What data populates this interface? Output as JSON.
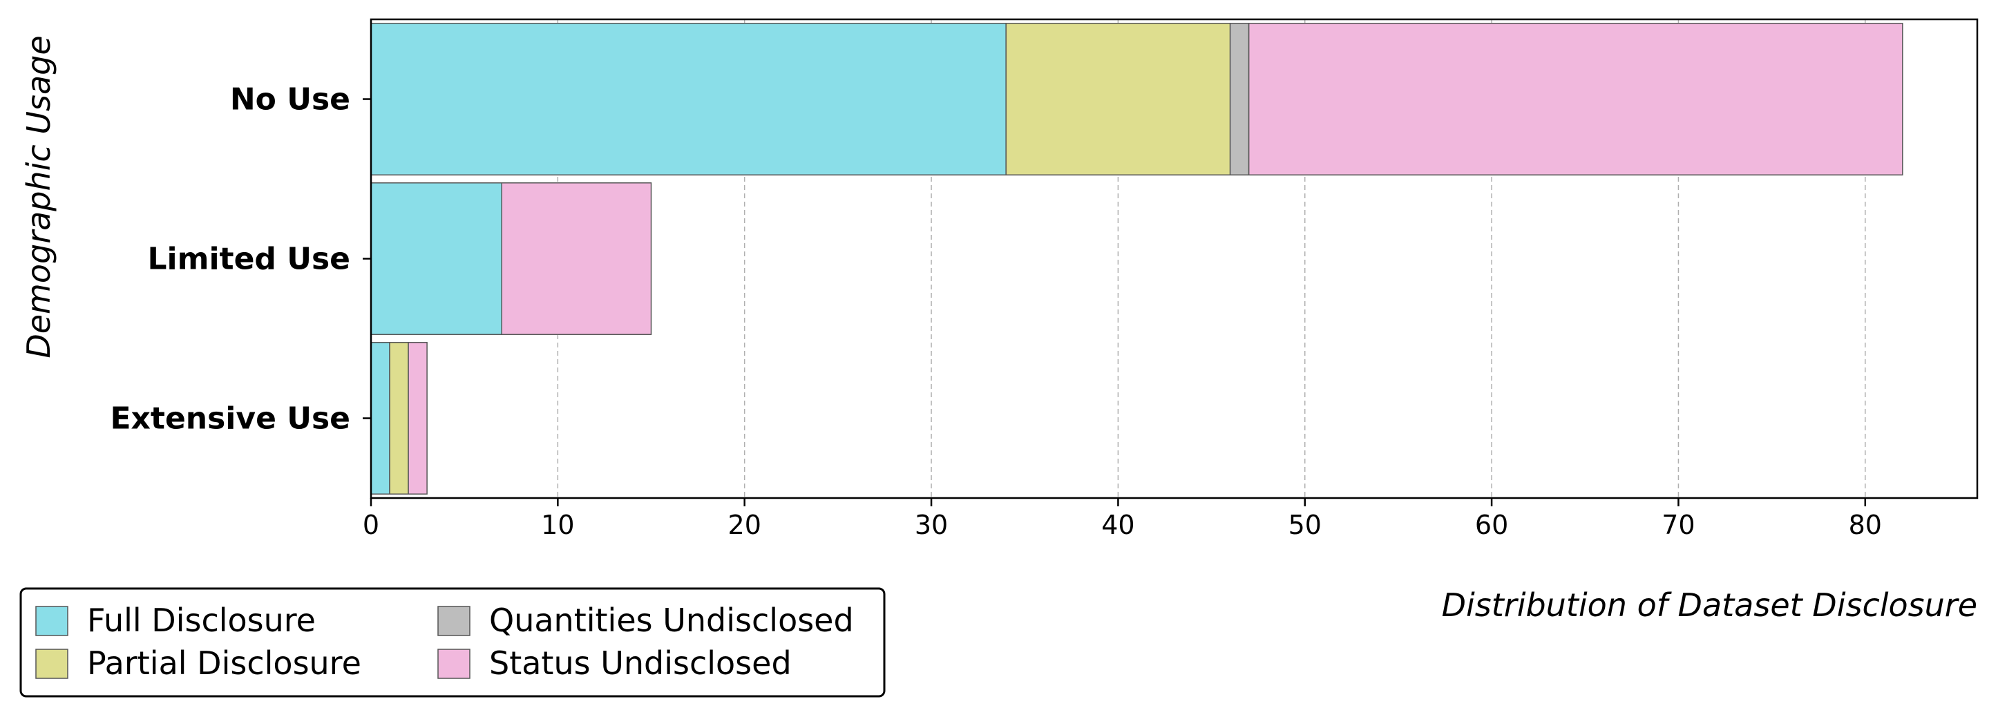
{
  "chart_data": {
    "type": "bar",
    "orientation": "horizontal",
    "stacked": true,
    "title": "",
    "xlabel": "Distribution of Dataset Disclosure",
    "ylabel": "Demographic Usage",
    "categories": [
      "No Use",
      "Limited Use",
      "Extensive Use"
    ],
    "series": [
      {
        "name": "Full Disclosure",
        "color": "#8ADEE8",
        "values": [
          34,
          7,
          1
        ]
      },
      {
        "name": "Partial Disclosure",
        "color": "#DEDE8F",
        "values": [
          12,
          0,
          1
        ]
      },
      {
        "name": "Quantities Undisclosed",
        "color": "#BDBDBD",
        "values": [
          1,
          0,
          0
        ]
      },
      {
        "name": "Status Undisclosed",
        "color": "#F1B8DD",
        "values": [
          35,
          8,
          1
        ]
      }
    ],
    "xlim": [
      0,
      86
    ],
    "xticks": [
      0,
      10,
      20,
      30,
      40,
      50,
      60,
      70,
      80
    ],
    "grid": "x dashed",
    "legend_position": "bottom-left"
  }
}
